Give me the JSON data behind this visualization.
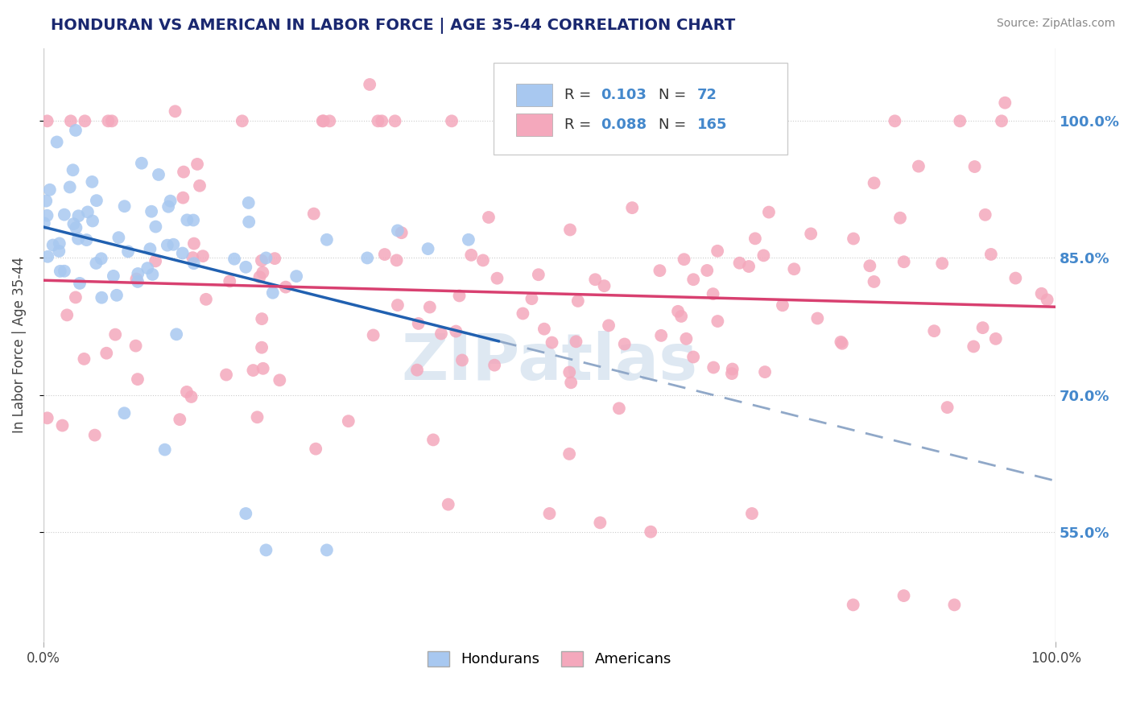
{
  "title": "HONDURAN VS AMERICAN IN LABOR FORCE | AGE 35-44 CORRELATION CHART",
  "source": "Source: ZipAtlas.com",
  "ylabel": "In Labor Force | Age 35-44",
  "xlim": [
    0.0,
    1.0
  ],
  "ylim": [
    0.43,
    1.08
  ],
  "yticks": [
    0.55,
    0.7,
    0.85,
    1.0
  ],
  "ytick_labels": [
    "55.0%",
    "70.0%",
    "85.0%",
    "100.0%"
  ],
  "xtick_labels": [
    "0.0%",
    "100.0%"
  ],
  "legend_R1": "0.103",
  "legend_N1": "72",
  "legend_R2": "0.088",
  "legend_N2": "165",
  "blue_color": "#a8c8f0",
  "pink_color": "#f4a8bc",
  "blue_line_color": "#2060b0",
  "pink_line_color": "#d84070",
  "dashed_line_color": "#90a8c8",
  "grid_color": "#cccccc",
  "title_color": "#1a2870",
  "source_color": "#888888",
  "label_color": "#4488cc",
  "text_color": "#333333",
  "watermark_color": "#c8daea"
}
